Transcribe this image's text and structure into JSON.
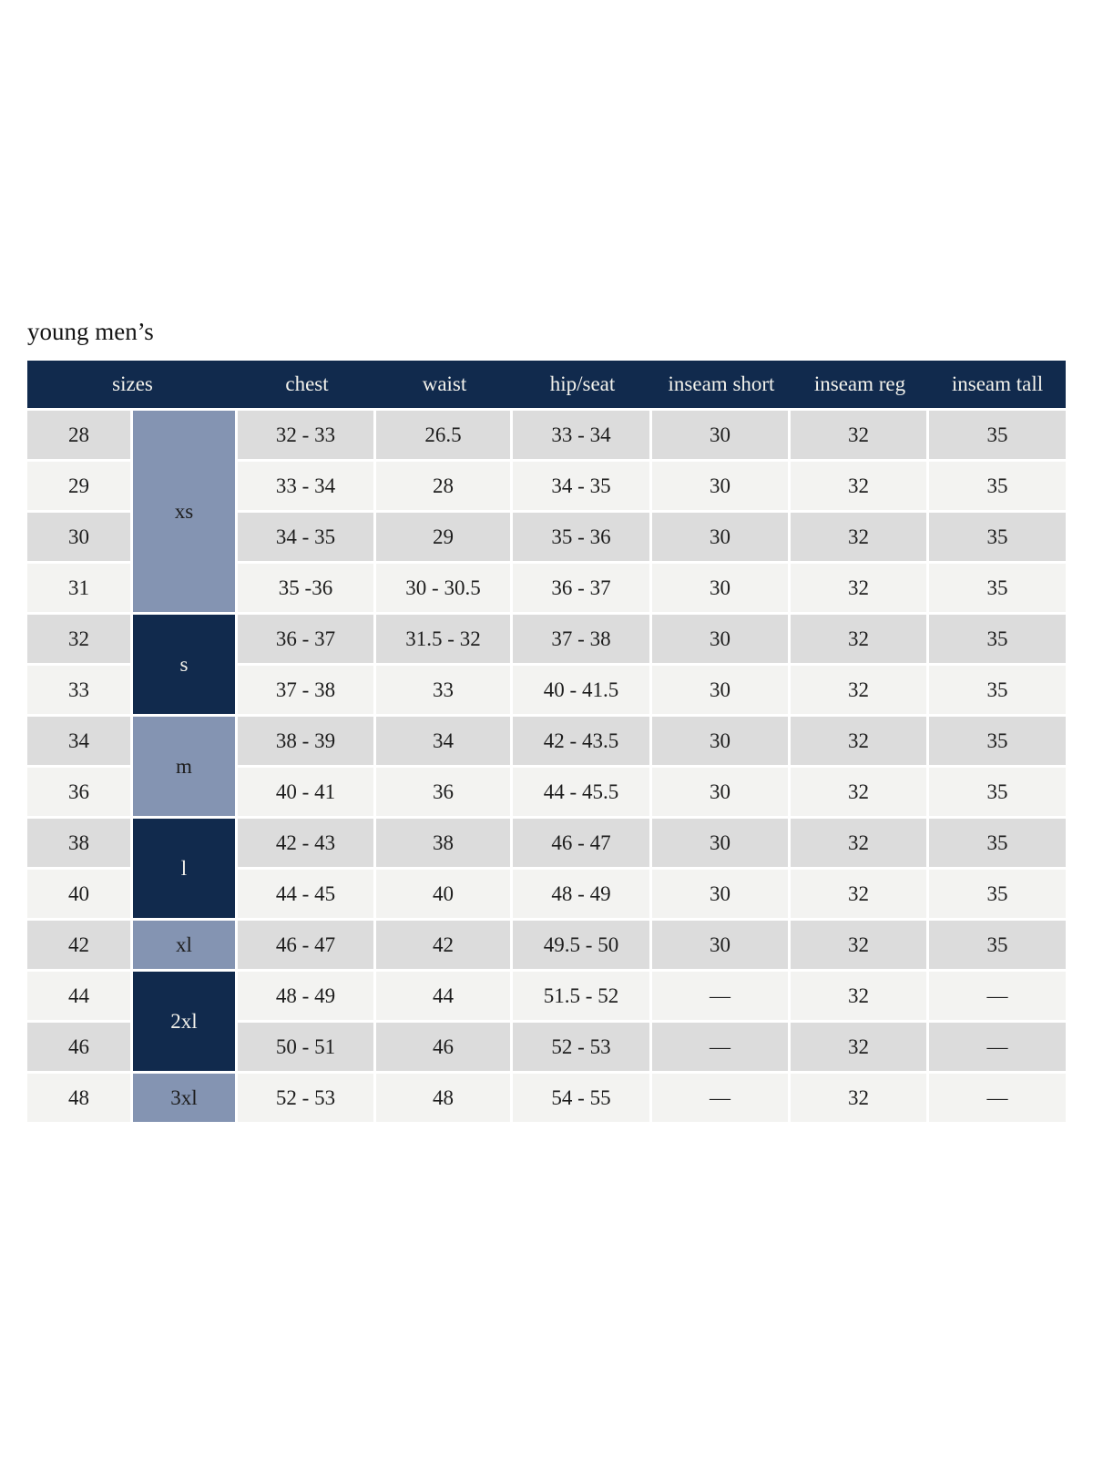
{
  "page": {
    "title": "young men’s"
  },
  "table": {
    "headers": [
      "sizes",
      "chest",
      "waist",
      "hip/seat",
      "inseam short",
      "inseam reg",
      "inseam tall"
    ],
    "groups": [
      {
        "label": "xs",
        "span": 4,
        "tone": "light"
      },
      {
        "label": "s",
        "span": 2,
        "tone": "dark"
      },
      {
        "label": "m",
        "span": 2,
        "tone": "light"
      },
      {
        "label": "l",
        "span": 2,
        "tone": "dark"
      },
      {
        "label": "xl",
        "span": 1,
        "tone": "light"
      },
      {
        "label": "2xl",
        "span": 2,
        "tone": "dark"
      },
      {
        "label": "3xl",
        "span": 1,
        "tone": "light"
      }
    ],
    "rows": [
      {
        "size": "28",
        "chest": "32 - 33",
        "waist": "26.5",
        "hip": "33 - 34",
        "inseam_short": "30",
        "inseam_reg": "32",
        "inseam_tall": "35"
      },
      {
        "size": "29",
        "chest": "33 - 34",
        "waist": "28",
        "hip": "34 - 35",
        "inseam_short": "30",
        "inseam_reg": "32",
        "inseam_tall": "35"
      },
      {
        "size": "30",
        "chest": "34 - 35",
        "waist": "29",
        "hip": "35 - 36",
        "inseam_short": "30",
        "inseam_reg": "32",
        "inseam_tall": "35"
      },
      {
        "size": "31",
        "chest": "35 -36",
        "waist": "30 - 30.5",
        "hip": "36 - 37",
        "inseam_short": "30",
        "inseam_reg": "32",
        "inseam_tall": "35"
      },
      {
        "size": "32",
        "chest": "36 - 37",
        "waist": "31.5 - 32",
        "hip": "37 - 38",
        "inseam_short": "30",
        "inseam_reg": "32",
        "inseam_tall": "35"
      },
      {
        "size": "33",
        "chest": "37 - 38",
        "waist": "33",
        "hip": "40 - 41.5",
        "inseam_short": "30",
        "inseam_reg": "32",
        "inseam_tall": "35"
      },
      {
        "size": "34",
        "chest": "38 - 39",
        "waist": "34",
        "hip": "42 - 43.5",
        "inseam_short": "30",
        "inseam_reg": "32",
        "inseam_tall": "35"
      },
      {
        "size": "36",
        "chest": "40 - 41",
        "waist": "36",
        "hip": "44 - 45.5",
        "inseam_short": "30",
        "inseam_reg": "32",
        "inseam_tall": "35"
      },
      {
        "size": "38",
        "chest": "42 - 43",
        "waist": "38",
        "hip": "46 - 47",
        "inseam_short": "30",
        "inseam_reg": "32",
        "inseam_tall": "35"
      },
      {
        "size": "40",
        "chest": "44 - 45",
        "waist": "40",
        "hip": "48 - 49",
        "inseam_short": "30",
        "inseam_reg": "32",
        "inseam_tall": "35"
      },
      {
        "size": "42",
        "chest": "46 - 47",
        "waist": "42",
        "hip": "49.5 - 50",
        "inseam_short": "30",
        "inseam_reg": "32",
        "inseam_tall": "35"
      },
      {
        "size": "44",
        "chest": "48 - 49",
        "waist": "44",
        "hip": "51.5 - 52",
        "inseam_short": "—",
        "inseam_reg": "32",
        "inseam_tall": "—"
      },
      {
        "size": "46",
        "chest": "50 - 51",
        "waist": "46",
        "hip": "52 - 53",
        "inseam_short": "—",
        "inseam_reg": "32",
        "inseam_tall": "—"
      },
      {
        "size": "48",
        "chest": "52 - 53",
        "waist": "48",
        "hip": "54 - 55",
        "inseam_short": "—",
        "inseam_reg": "32",
        "inseam_tall": "—"
      }
    ],
    "colors": {
      "navy": "#112a4d",
      "slate": "#8494b2",
      "row_gray": "#dcdcdc",
      "row_light": "#f3f3f1",
      "header_text": "#f3f2ec",
      "cell_text": "#1d1d1d",
      "title_text": "#141414"
    }
  }
}
